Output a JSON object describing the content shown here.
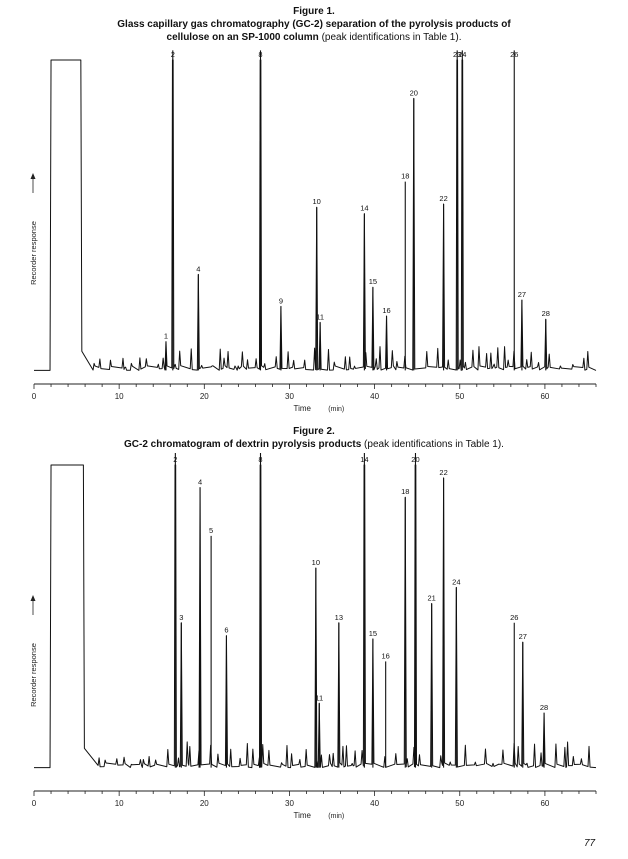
{
  "figures": [
    {
      "label": "Figure 1.",
      "title_line1": "Glass capillary gas chromatography (GC-2) separation of the pyrolysis products of",
      "title_line2_bold": "cellulose on an SP-1000 column",
      "title_line2_plain": " (peak identifications in Table 1).",
      "chart_data": {
        "type": "line",
        "xlabel": "Time",
        "xunit": "(min)",
        "ylabel": "Recorder response",
        "xlim": [
          0,
          66
        ],
        "x_ticks": [
          0,
          10,
          20,
          30,
          40,
          50,
          60
        ],
        "ylim": [
          0,
          100
        ],
        "baseline": 3,
        "solvent_front": [
          2,
          5.5,
          100
        ],
        "peaks": [
          {
            "t": 15.5,
            "h": 9,
            "label": "1"
          },
          {
            "t": 16.3,
            "h": 100,
            "label": "2"
          },
          {
            "t": 19.3,
            "h": 30,
            "label": "4"
          },
          {
            "t": 26.6,
            "h": 100,
            "label": "8"
          },
          {
            "t": 29.0,
            "h": 20,
            "label": "9"
          },
          {
            "t": 33.2,
            "h": 51,
            "label": "10"
          },
          {
            "t": 33.6,
            "h": 15,
            "label": "11"
          },
          {
            "t": 38.8,
            "h": 49,
            "label": "14"
          },
          {
            "t": 39.8,
            "h": 26,
            "label": "15"
          },
          {
            "t": 41.4,
            "h": 17,
            "label": "16"
          },
          {
            "t": 43.6,
            "h": 59,
            "label": "18"
          },
          {
            "t": 44.6,
            "h": 85,
            "label": "20"
          },
          {
            "t": 48.1,
            "h": 52,
            "label": "22"
          },
          {
            "t": 49.7,
            "h": 100,
            "label": "23"
          },
          {
            "t": 50.3,
            "h": 100,
            "label": "24"
          },
          {
            "t": 56.4,
            "h": 100,
            "label": "26"
          },
          {
            "t": 57.3,
            "h": 22,
            "label": "27"
          },
          {
            "t": 60.1,
            "h": 16,
            "label": "28"
          }
        ]
      }
    },
    {
      "label": "Figure 2.",
      "title_line1_bold": "GC-2 chromatogram of dextrin pyrolysis products",
      "title_line1_plain": " (peak identifications in Table 1).",
      "chart_data": {
        "type": "line",
        "xlabel": "Time",
        "xunit": "(min)",
        "ylabel": "Recorder response",
        "xlim": [
          0,
          66
        ],
        "x_ticks": [
          0,
          10,
          20,
          30,
          40,
          50,
          60
        ],
        "ylim": [
          0,
          100
        ],
        "baseline": 6,
        "solvent_front": [
          2,
          5.8,
          100
        ],
        "peaks": [
          {
            "t": 16.6,
            "h": 100,
            "label": "2"
          },
          {
            "t": 17.3,
            "h": 45,
            "label": "3"
          },
          {
            "t": 19.5,
            "h": 87,
            "label": "4"
          },
          {
            "t": 20.8,
            "h": 72,
            "label": "5"
          },
          {
            "t": 22.6,
            "h": 41,
            "label": "6"
          },
          {
            "t": 26.6,
            "h": 100,
            "label": "8"
          },
          {
            "t": 33.1,
            "h": 62,
            "label": "10"
          },
          {
            "t": 33.5,
            "h": 20,
            "label": "11"
          },
          {
            "t": 35.8,
            "h": 45,
            "label": "13"
          },
          {
            "t": 38.8,
            "h": 100,
            "label": "14"
          },
          {
            "t": 39.8,
            "h": 40,
            "label": "15"
          },
          {
            "t": 41.3,
            "h": 33,
            "label": "16"
          },
          {
            "t": 43.6,
            "h": 84,
            "label": "18"
          },
          {
            "t": 44.8,
            "h": 100,
            "label": "20"
          },
          {
            "t": 46.7,
            "h": 51,
            "label": "21"
          },
          {
            "t": 48.1,
            "h": 90,
            "label": "22"
          },
          {
            "t": 49.6,
            "h": 56,
            "label": "24"
          },
          {
            "t": 56.4,
            "h": 45,
            "label": "26"
          },
          {
            "t": 57.4,
            "h": 39,
            "label": "27"
          },
          {
            "t": 59.9,
            "h": 17,
            "label": "28"
          }
        ]
      }
    }
  ],
  "page_number": "77"
}
